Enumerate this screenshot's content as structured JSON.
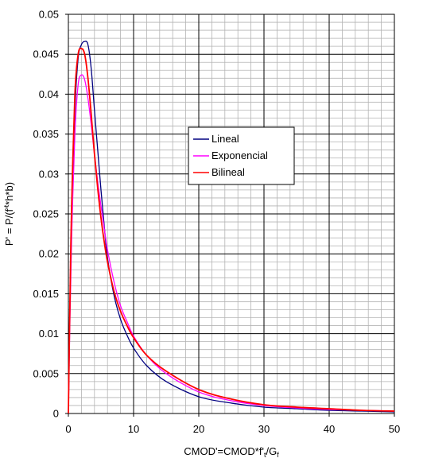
{
  "chart_data": {
    "type": "line",
    "title": "",
    "xlabel": "CMOD'=CMOD*f't/Gf",
    "xlabel_parts": {
      "main": "CMOD'=CMOD*f'",
      "sub1": "t",
      "mid": "/G",
      "sub2": "f"
    },
    "ylabel": "P' = P/(f't*h*b)",
    "ylabel_parts": {
      "a": "P' = P/(f'",
      "sup": "t",
      "b": "*h*b)"
    },
    "xlim": [
      0,
      50
    ],
    "ylim": [
      0,
      0.05
    ],
    "xticks": [
      "0",
      "10",
      "20",
      "30",
      "40",
      "50"
    ],
    "yticks": [
      "0",
      "0.005",
      "0.01",
      "0.015",
      "0.02",
      "0.025",
      "0.03",
      "0.035",
      "0.04",
      "0.045",
      "0.05"
    ],
    "grid": true,
    "legend_position": "center-right",
    "series": [
      {
        "name": "Lineal",
        "color": "#000080",
        "x": [
          0,
          0.2,
          0.5,
          1.0,
          1.5,
          2.0,
          2.5,
          3.0,
          3.5,
          4.0,
          4.5,
          5.0,
          5.5,
          6.0,
          7.0,
          8.0,
          9.0,
          10,
          12,
          15,
          20,
          25,
          30,
          35,
          40,
          45,
          50
        ],
        "y": [
          0,
          0.012,
          0.025,
          0.038,
          0.0445,
          0.0462,
          0.0466,
          0.0462,
          0.0432,
          0.038,
          0.033,
          0.028,
          0.0235,
          0.0195,
          0.0148,
          0.0118,
          0.0098,
          0.0082,
          0.006,
          0.004,
          0.0021,
          0.0013,
          0.0008,
          0.0006,
          0.0004,
          0.0003,
          0.0002
        ]
      },
      {
        "name": "Exponencial",
        "color": "#ff00ff",
        "x": [
          0,
          0.2,
          0.5,
          1.0,
          1.5,
          2.0,
          2.5,
          3.0,
          3.5,
          4.0,
          4.5,
          5.0,
          5.5,
          6.0,
          7.0,
          8.0,
          9.0,
          10,
          12,
          15,
          20,
          25,
          30,
          35,
          40,
          45,
          50
        ],
        "y": [
          0,
          0.01,
          0.022,
          0.035,
          0.0412,
          0.0424,
          0.0418,
          0.0395,
          0.0362,
          0.0325,
          0.029,
          0.026,
          0.0232,
          0.0205,
          0.0165,
          0.0135,
          0.0115,
          0.0097,
          0.0073,
          0.005,
          0.0027,
          0.0016,
          0.001,
          0.0007,
          0.0005,
          0.0004,
          0.0003
        ]
      },
      {
        "name": "Bilineal",
        "color": "#ff0000",
        "x": [
          0,
          0.2,
          0.5,
          1.0,
          1.5,
          2.0,
          2.5,
          3.0,
          3.5,
          4.0,
          4.5,
          5.0,
          5.5,
          6.0,
          7.0,
          8.0,
          9.0,
          10,
          12,
          15,
          20,
          25,
          30,
          35,
          40,
          45,
          50
        ],
        "y": [
          0,
          0.012,
          0.026,
          0.04,
          0.045,
          0.0457,
          0.045,
          0.042,
          0.0375,
          0.0325,
          0.0282,
          0.0245,
          0.0215,
          0.019,
          0.0153,
          0.0128,
          0.011,
          0.0095,
          0.0073,
          0.0053,
          0.003,
          0.0018,
          0.0011,
          0.0008,
          0.0006,
          0.0004,
          0.0003
        ]
      }
    ]
  }
}
